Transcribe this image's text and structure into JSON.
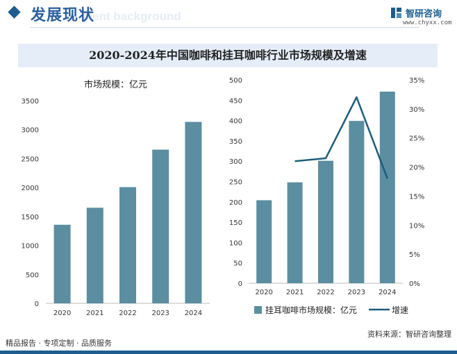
{
  "header": {
    "section_title": "发展现状",
    "ghost_text": "ment background",
    "brand_name": "智研咨询",
    "brand_url": "www.chyxx.com"
  },
  "title": "2020-2024年中国咖啡和挂耳咖啡行业市场规模及增速",
  "chart_data": [
    {
      "type": "bar",
      "title": "",
      "ylabel": "市场规模：亿元",
      "categories": [
        "2020",
        "2021",
        "2022",
        "2023",
        "2024"
      ],
      "values": [
        1357,
        1651,
        2007,
        2654,
        3133
      ],
      "ylim": [
        0,
        3500
      ],
      "yticks": [
        "0",
        "500",
        "1000",
        "1500",
        "2000",
        "2500",
        "3000",
        "3500"
      ],
      "grid": false,
      "color": "#5b8ea1"
    },
    {
      "type": "bar+line",
      "categories": [
        "2020",
        "2021",
        "2022",
        "2023",
        "2024"
      ],
      "series": [
        {
          "name": "挂耳咖啡市场规模：亿元",
          "type": "bar",
          "axis": "left",
          "values": [
            204,
            248,
            301,
            399,
            471
          ],
          "color": "#5b8ea1"
        },
        {
          "name": "增速",
          "type": "line",
          "axis": "right",
          "values": [
            null,
            21.0,
            21.5,
            32.0,
            18.0
          ],
          "color": "#1d5d7a"
        }
      ],
      "ylim_left": [
        0,
        500
      ],
      "yticks_left": [
        "0",
        "50",
        "100",
        "150",
        "200",
        "250",
        "300",
        "350",
        "400",
        "450",
        "500"
      ],
      "ylim_right": [
        0,
        35
      ],
      "yticks_right": [
        "0%",
        "5%",
        "10%",
        "15%",
        "20%",
        "25%",
        "30%",
        "35%"
      ],
      "legend_position": "bottom"
    }
  ],
  "footer": {
    "left": "精品报告 · 专项定制 · 品质服务",
    "source": "资料来源：智研咨询整理"
  },
  "colors": {
    "accent": "#1d5d8f",
    "bar": "#5b8ea1",
    "line": "#1d5d7a",
    "band": "#e4edf8"
  }
}
